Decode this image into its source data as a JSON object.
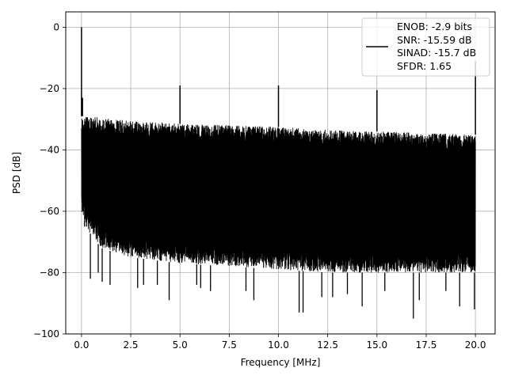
{
  "chart_data": {
    "type": "line",
    "title": "",
    "xlabel": "Frequency [MHz]",
    "ylabel": "PSD [dB]",
    "xlim": [
      -0.8,
      21.0
    ],
    "ylim": [
      -100,
      5
    ],
    "xticks": [
      0.0,
      2.5,
      5.0,
      7.5,
      10.0,
      12.5,
      15.0,
      17.5,
      20.0
    ],
    "xtick_labels": [
      "0.0",
      "2.5",
      "5.0",
      "7.5",
      "10.0",
      "12.5",
      "15.0",
      "17.5",
      "20.0"
    ],
    "yticks": [
      0,
      -20,
      -40,
      -60,
      -80,
      -100
    ],
    "ytick_labels": [
      "0",
      "−20",
      "−40",
      "−60",
      "−80",
      "−100"
    ],
    "grid": true,
    "legend_placement": "top-right",
    "legend_entries": [
      "ENOB: -2.9 bits",
      "SNR: -15.59 dB",
      "SINAD: -15.7 dB",
      "SFDR: 1.65"
    ],
    "series": [
      {
        "color": "#000000",
        "x_range": [
          0.0,
          20.0
        ],
        "noise_band": {
          "upper_envelope": [
            [
              0.0,
              -29
            ],
            [
              0.5,
              -29
            ],
            [
              1.0,
              -29.5
            ],
            [
              1.5,
              -30
            ],
            [
              2.5,
              -30.5
            ],
            [
              4.0,
              -31
            ],
            [
              5.0,
              -31.5
            ],
            [
              7.5,
              -32
            ],
            [
              10.0,
              -32.5
            ],
            [
              12.5,
              -33.5
            ],
            [
              15.0,
              -34
            ],
            [
              17.5,
              -34.5
            ],
            [
              20.0,
              -35
            ]
          ],
          "lower_envelope": [
            [
              0.0,
              -60
            ],
            [
              0.3,
              -66
            ],
            [
              1.0,
              -72
            ],
            [
              2.5,
              -75
            ],
            [
              5.0,
              -77
            ],
            [
              7.5,
              -78
            ],
            [
              10.0,
              -79
            ],
            [
              12.5,
              -80
            ],
            [
              15.0,
              -80
            ],
            [
              17.5,
              -80
            ],
            [
              20.0,
              -80
            ]
          ]
        },
        "peaks": [
          {
            "x": 0.0,
            "y": 0
          },
          {
            "x": 0.05,
            "y": -23
          },
          {
            "x": 5.0,
            "y": -19
          },
          {
            "x": 10.0,
            "y": -19
          },
          {
            "x": 15.0,
            "y": -20.5
          },
          {
            "x": 20.0,
            "y": -11
          }
        ],
        "dips": [
          {
            "x": 0.15,
            "y": -65
          },
          {
            "x": 0.25,
            "y": -64
          },
          {
            "x": 0.45,
            "y": -82
          },
          {
            "x": 0.85,
            "y": -80
          },
          {
            "x": 1.05,
            "y": -83
          },
          {
            "x": 1.45,
            "y": -84
          },
          {
            "x": 2.85,
            "y": -85
          },
          {
            "x": 3.15,
            "y": -84
          },
          {
            "x": 3.85,
            "y": -84
          },
          {
            "x": 4.45,
            "y": -89
          },
          {
            "x": 5.85,
            "y": -84
          },
          {
            "x": 6.05,
            "y": -85
          },
          {
            "x": 6.55,
            "y": -86
          },
          {
            "x": 8.35,
            "y": -86
          },
          {
            "x": 8.75,
            "y": -89
          },
          {
            "x": 11.05,
            "y": -93
          },
          {
            "x": 11.25,
            "y": -93
          },
          {
            "x": 12.2,
            "y": -88
          },
          {
            "x": 12.75,
            "y": -88
          },
          {
            "x": 13.5,
            "y": -87
          },
          {
            "x": 14.25,
            "y": -91
          },
          {
            "x": 15.4,
            "y": -86
          },
          {
            "x": 16.85,
            "y": -95
          },
          {
            "x": 17.15,
            "y": -89
          },
          {
            "x": 18.5,
            "y": -86
          },
          {
            "x": 19.2,
            "y": -91
          },
          {
            "x": 19.95,
            "y": -92
          }
        ]
      }
    ]
  }
}
